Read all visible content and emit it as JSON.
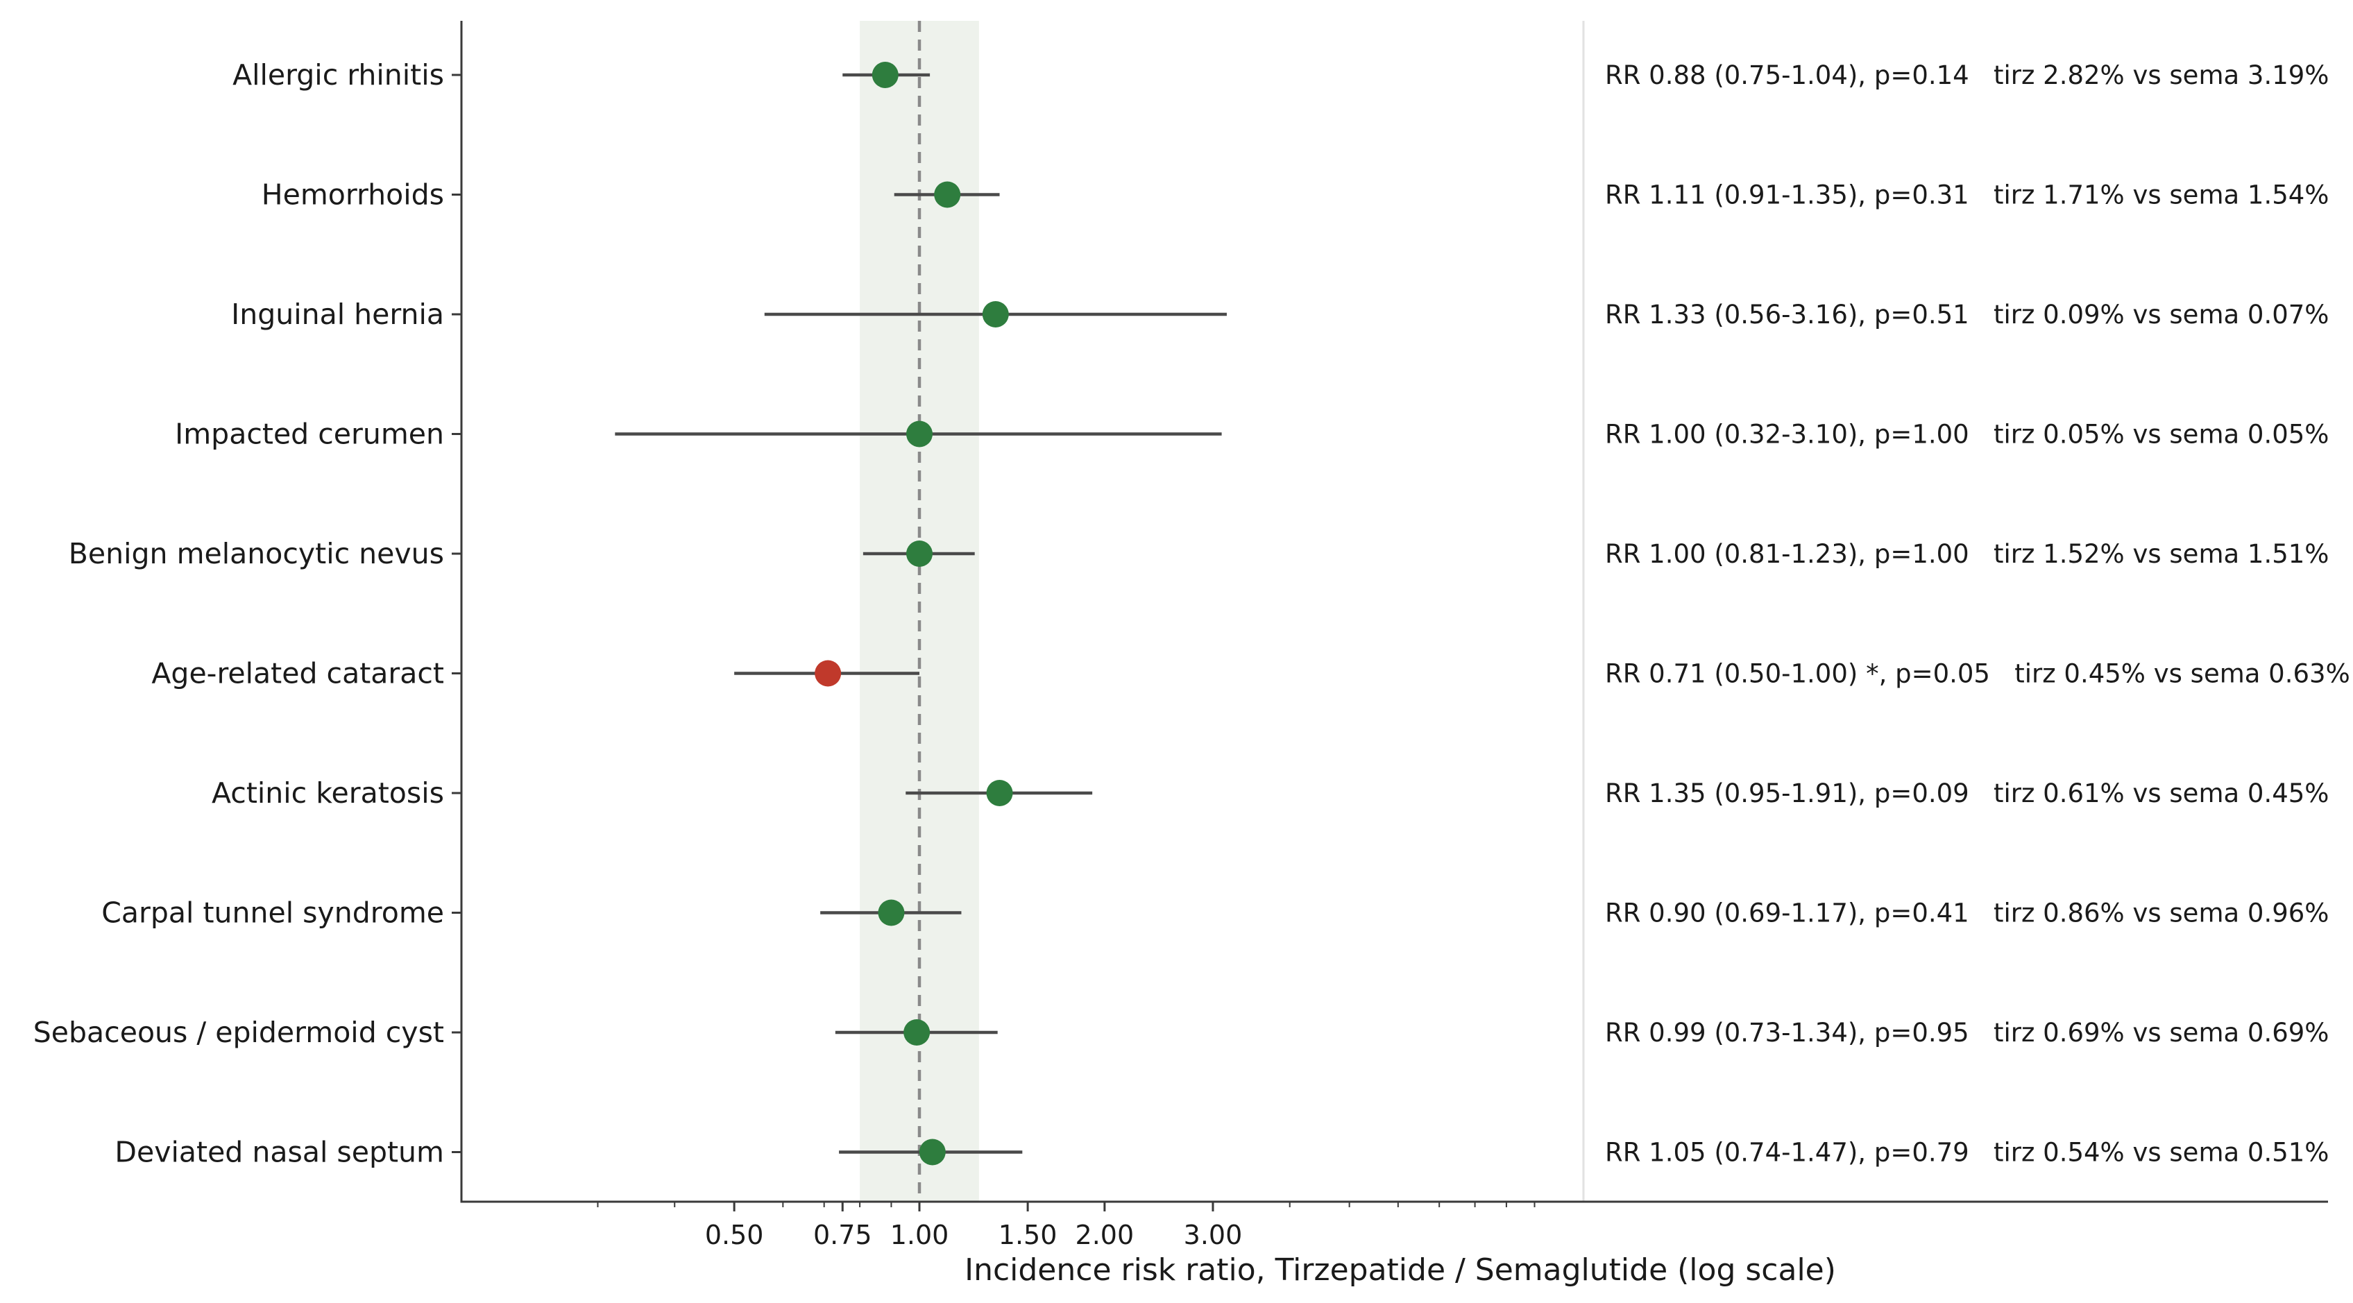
{
  "chart_data": {
    "type": "scatter",
    "subtype": "forest-plot",
    "xlabel": "Incidence risk ratio, Tirzepatide / Semaglutide (log scale)",
    "x_scale": "log",
    "xlim": [
      0.2,
      15
    ],
    "xticks": [
      0.5,
      0.75,
      1.0,
      1.5,
      2.0,
      3.0
    ],
    "xtick_labels": [
      "0.50",
      "0.75",
      "1.00",
      "1.50",
      "2.00",
      "3.00"
    ],
    "reference_line": 1.0,
    "equivalence_band": [
      0.8,
      1.25
    ],
    "colors": {
      "non_significant": "#2e7d3e",
      "significant": "#c0392b",
      "band": "#eef2ec",
      "ci_line": "#4a4a4a",
      "ref_line": "#8a8a8a"
    },
    "rows": [
      {
        "label": "Allergic rhinitis",
        "rr": 0.88,
        "lo": 0.75,
        "hi": 1.04,
        "significant": false,
        "annotation": "RR 0.88 (0.75-1.04), p=0.14   tirz 2.82% vs sema 3.19%"
      },
      {
        "label": "Hemorrhoids",
        "rr": 1.11,
        "lo": 0.91,
        "hi": 1.35,
        "significant": false,
        "annotation": "RR 1.11 (0.91-1.35), p=0.31   tirz 1.71% vs sema 1.54%"
      },
      {
        "label": "Inguinal hernia",
        "rr": 1.33,
        "lo": 0.56,
        "hi": 3.16,
        "significant": false,
        "annotation": "RR 1.33 (0.56-3.16), p=0.51   tirz 0.09% vs sema 0.07%"
      },
      {
        "label": "Impacted cerumen",
        "rr": 1.0,
        "lo": 0.32,
        "hi": 3.1,
        "significant": false,
        "annotation": "RR 1.00 (0.32-3.10), p=1.00   tirz 0.05% vs sema 0.05%"
      },
      {
        "label": "Benign melanocytic nevus",
        "rr": 1.0,
        "lo": 0.81,
        "hi": 1.23,
        "significant": false,
        "annotation": "RR 1.00 (0.81-1.23), p=1.00   tirz 1.52% vs sema 1.51%"
      },
      {
        "label": "Age-related cataract",
        "rr": 0.71,
        "lo": 0.5,
        "hi": 1.0,
        "significant": true,
        "annotation": "RR 0.71 (0.50-1.00) *, p=0.05   tirz 0.45% vs sema 0.63%"
      },
      {
        "label": "Actinic keratosis",
        "rr": 1.35,
        "lo": 0.95,
        "hi": 1.91,
        "significant": false,
        "annotation": "RR 1.35 (0.95-1.91), p=0.09   tirz 0.61% vs sema 0.45%"
      },
      {
        "label": "Carpal tunnel syndrome",
        "rr": 0.9,
        "lo": 0.69,
        "hi": 1.17,
        "significant": false,
        "annotation": "RR 0.90 (0.69-1.17), p=0.41   tirz 0.86% vs sema 0.96%"
      },
      {
        "label": "Sebaceous / epidermoid cyst",
        "rr": 0.99,
        "lo": 0.73,
        "hi": 1.34,
        "significant": false,
        "annotation": "RR 0.99 (0.73-1.34), p=0.95   tirz 0.69% vs sema 0.69%"
      },
      {
        "label": "Deviated nasal septum",
        "rr": 1.05,
        "lo": 0.74,
        "hi": 1.47,
        "significant": false,
        "annotation": "RR 1.05 (0.74-1.47), p=0.79   tirz 0.54% vs sema 0.51%"
      }
    ]
  }
}
